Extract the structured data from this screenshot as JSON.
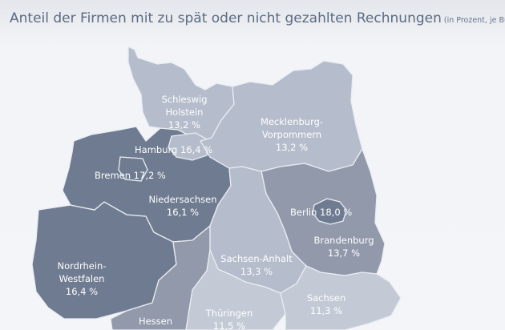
{
  "title": "Anteil der Firmen mit zu spät oder nicht gezahlten Rechnungen",
  "subtitle": "(in Prozent, je Bundesland)",
  "colors": {
    "dark": "#6f7b90",
    "mid": "#9199ab",
    "light": "#b5bccb",
    "lighter": "#c3c9d5"
  },
  "states": {
    "sh": {
      "name_line1": "Schleswig",
      "name_line2": "Holstein",
      "value": "13,2 %"
    },
    "hh": {
      "name": "Hamburg",
      "value": "16,4 %"
    },
    "hb": {
      "name": "Bremen",
      "value": "17,2 %"
    },
    "mv": {
      "name_line1": "Mecklenburg-",
      "name_line2": "Vorpommern",
      "value": "13,2 %"
    },
    "ni": {
      "name": "Niedersachsen",
      "value": "16,1 %"
    },
    "be": {
      "name": "Berlin",
      "value": "18,0 %"
    },
    "bb": {
      "name": "Brandenburg",
      "value": "13,7 %"
    },
    "st": {
      "name": "Sachsen-Anhalt",
      "value": "13,3 %"
    },
    "nw": {
      "name_line1": "Nordrhein-",
      "name_line2": "Westfalen",
      "value": "16,4 %"
    },
    "sn": {
      "name": "Sachsen",
      "value": "11,3 %"
    },
    "th": {
      "name": "Thüringen",
      "value": "11,5 %"
    },
    "he": {
      "name": "Hessen"
    }
  }
}
